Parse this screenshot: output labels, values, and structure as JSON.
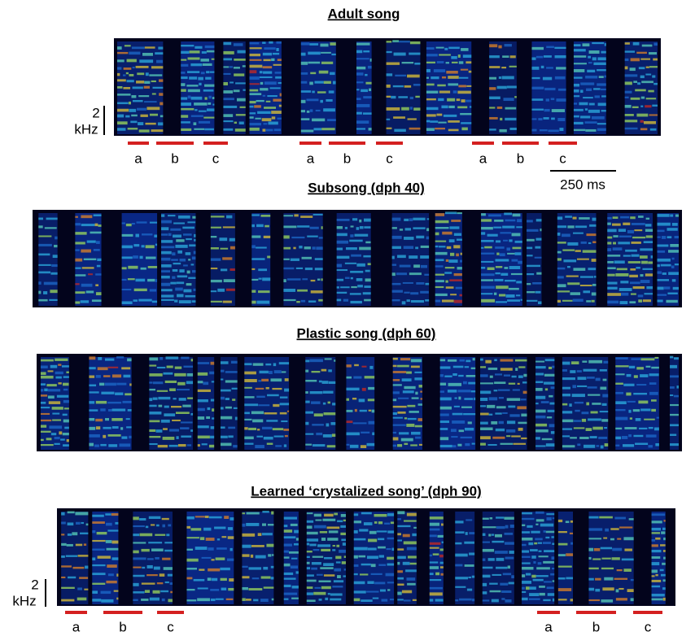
{
  "panels": [
    {
      "title": "Adult song",
      "syllables": [
        "a",
        "b",
        "c",
        "a",
        "b",
        "c",
        "a",
        "b",
        "c"
      ],
      "freq_scale": {
        "value": "2",
        "unit": "kHz"
      },
      "time_scale": "250 ms"
    },
    {
      "title": "Subsong (dph 40)"
    },
    {
      "title": "Plastic song (dph 60)"
    },
    {
      "title": "Learned ‘crystalized song’ (dph 90)",
      "syllables": [
        "a",
        "b",
        "c",
        "a",
        "b",
        "c"
      ],
      "freq_scale": {
        "value": "2",
        "unit": "kHz"
      }
    }
  ]
}
